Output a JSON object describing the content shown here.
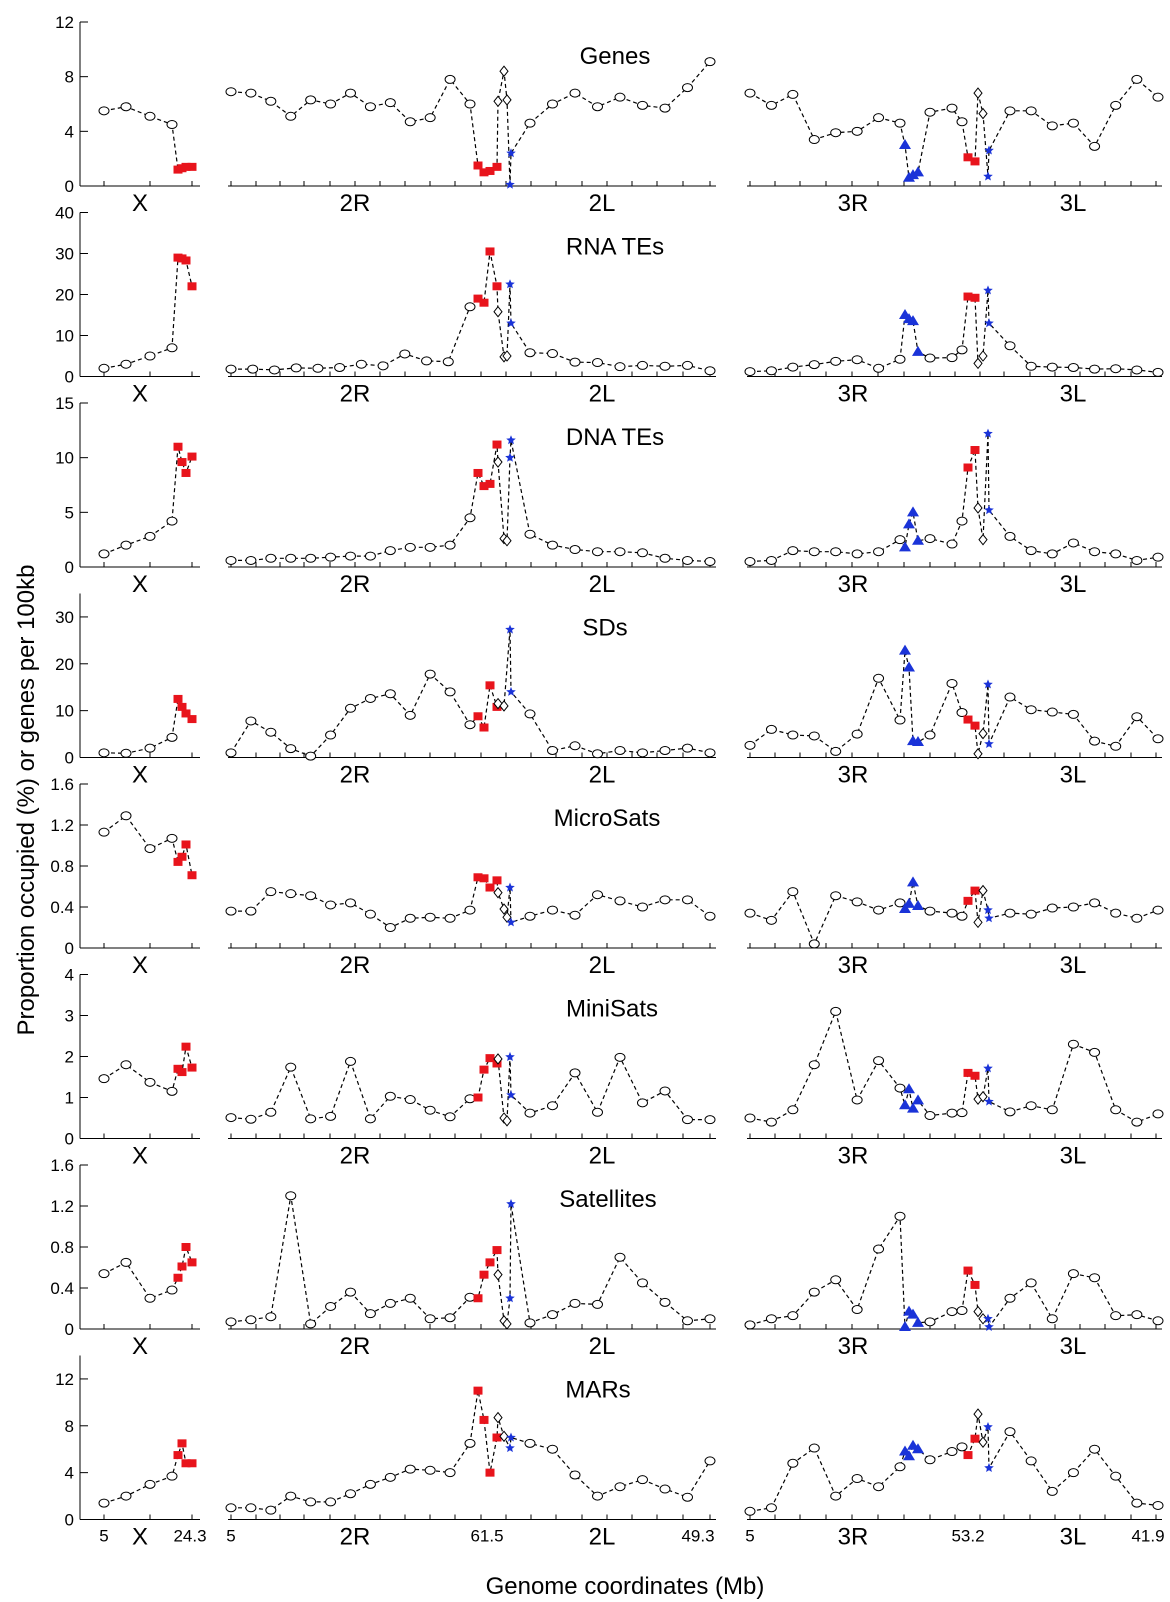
{
  "chart_data": {
    "type": "scatter",
    "ylabel": "Proportion occupied (%) or genes per 100kb",
    "xlabel": "Genome coordinates (Mb)",
    "x_tick_labels": {
      "X": [
        "5",
        "24.3"
      ],
      "2": [
        "5",
        "61.5",
        "49.3"
      ],
      "3": [
        "5",
        "53.2",
        "41.9"
      ]
    },
    "arm_labels": [
      "X",
      "2R",
      "2L",
      "3R",
      "3L"
    ],
    "panels": [
      {
        "title": "Genes",
        "yticks": [
          "0",
          "4",
          "8",
          "12"
        ],
        "ylim": [
          0,
          12
        ],
        "X": {
          "black": [
            5.5,
            5.8,
            5.1,
            4.5
          ],
          "red": [
            1.2,
            1.3,
            1.4,
            1.4
          ]
        },
        "2": {
          "black": [
            6.9,
            6.8,
            6.2,
            5.1,
            6.3,
            6.0,
            6.8,
            5.8,
            6.1,
            4.7,
            5.0,
            7.8,
            6.0
          ],
          "red": [
            1.5,
            1.0,
            1.1,
            1.4
          ],
          "diamond": [
            6.2,
            8.4,
            6.3
          ],
          "blue": [
            0.1,
            2.4
          ],
          "black2": [
            4.6,
            6.0,
            6.8,
            5.8,
            6.5,
            5.9,
            5.7,
            7.2,
            9.1
          ]
        },
        "3": {
          "black": [
            6.8,
            5.9,
            6.7,
            3.4,
            3.9,
            4.0,
            5.0,
            4.6
          ],
          "blue_tri": [
            3.0,
            0.6,
            0.8,
            1.0
          ],
          "black_mid": [
            5.4,
            5.7,
            4.7
          ],
          "red": [
            2.1,
            1.8
          ],
          "diamond": [
            6.8,
            5.3
          ],
          "blue": [
            0.7,
            2.6
          ],
          "black2": [
            5.5,
            5.5,
            4.4,
            4.6,
            2.9,
            5.9,
            7.8,
            6.5
          ]
        }
      },
      {
        "title": "RNA TEs",
        "yticks": [
          "0",
          "10",
          "20",
          "30",
          "40"
        ],
        "ylim": [
          0,
          40
        ],
        "X": {
          "black": [
            2.0,
            3.0,
            5.0,
            7.0
          ],
          "red": [
            29.0,
            28.8,
            28.3,
            22.0
          ]
        },
        "2": {
          "black": [
            1.8,
            1.8,
            1.6,
            2.1,
            2.0,
            2.2,
            3.0,
            2.6,
            5.5,
            3.8,
            3.6,
            17.0
          ],
          "red": [
            19.0,
            18.0,
            30.5,
            22.0
          ],
          "diamond": [
            15.8,
            4.8,
            5.0
          ],
          "blue": [
            22.5,
            13.0
          ],
          "black2": [
            5.8,
            5.6,
            3.5,
            3.4,
            2.4,
            2.7,
            2.5,
            2.7,
            1.4
          ]
        },
        "3": {
          "black": [
            1.2,
            1.4,
            2.3,
            2.9,
            3.7,
            4.1,
            2.0,
            4.2
          ],
          "blue_tri": [
            15.0,
            14.0,
            13.5,
            6.0
          ],
          "black_mid": [
            4.5,
            4.6,
            6.5
          ],
          "red": [
            19.5,
            19.2
          ],
          "diamond": [
            3.2,
            5.0
          ],
          "blue": [
            21.0,
            13.0
          ],
          "black2": [
            7.5,
            2.5,
            2.3,
            2.2,
            1.8,
            1.9,
            1.6,
            1.0
          ]
        }
      },
      {
        "title": "DNA TEs",
        "yticks": [
          "0",
          "5",
          "10",
          "15"
        ],
        "ylim": [
          0,
          15
        ],
        "X": {
          "black": [
            1.2,
            2.0,
            2.8,
            4.2
          ],
          "red": [
            11.0,
            9.6,
            8.6,
            10.1
          ]
        },
        "2": {
          "black": [
            0.6,
            0.6,
            0.8,
            0.8,
            0.8,
            0.9,
            1.0,
            1.0,
            1.5,
            1.8,
            1.8,
            2.0,
            4.5
          ],
          "red": [
            8.6,
            7.4,
            7.6,
            11.2
          ],
          "diamond": [
            9.6,
            2.6,
            2.4
          ],
          "blue": [
            10.0,
            11.6
          ],
          "black2": [
            3.0,
            2.0,
            1.6,
            1.4,
            1.4,
            1.3,
            0.8,
            0.6,
            0.5
          ]
        },
        "3": {
          "black": [
            0.5,
            0.6,
            1.5,
            1.4,
            1.4,
            1.2,
            1.4,
            2.5
          ],
          "blue_tri": [
            1.8,
            3.9,
            5.0,
            2.4
          ],
          "black_mid": [
            2.6,
            2.1,
            4.2
          ],
          "red": [
            9.1,
            10.7
          ],
          "diamond": [
            5.4,
            2.5
          ],
          "blue": [
            12.2,
            5.2
          ],
          "black2": [
            2.8,
            1.5,
            1.2,
            2.2,
            1.4,
            1.2,
            0.6,
            0.9
          ]
        }
      },
      {
        "title": "SDs",
        "yticks": [
          "0",
          "10",
          "20",
          "30"
        ],
        "ylim": [
          0,
          35
        ],
        "X": {
          "black": [
            1.0,
            0.9,
            2.0,
            4.3
          ],
          "red": [
            12.5,
            10.8,
            9.4,
            8.2
          ]
        },
        "2": {
          "black": [
            1.0,
            7.8,
            5.4,
            1.9,
            0.3,
            4.8,
            10.5,
            12.6,
            13.6,
            9.0,
            17.8,
            14.0,
            7.0
          ],
          "red": [
            8.8,
            6.4,
            15.4,
            10.8
          ],
          "diamond": [
            11.5,
            11.0
          ],
          "blue": [
            27.3,
            14.0
          ],
          "black2": [
            9.3,
            1.5,
            2.5,
            0.8,
            1.5,
            1.0,
            1.5,
            2.0,
            1.0
          ]
        },
        "3": {
          "black": [
            2.6,
            6.0,
            4.8,
            4.6,
            1.3,
            5.0,
            16.9,
            8.0
          ],
          "blue_tri": [
            22.8,
            19.2,
            3.5,
            3.3
          ],
          "black_mid": [
            4.8,
            15.8,
            9.6
          ],
          "red": [
            8.1,
            6.8
          ],
          "diamond": [
            0.8,
            5.1
          ],
          "blue": [
            15.6,
            2.9
          ],
          "black2": [
            12.9,
            10.2,
            9.7,
            9.2,
            3.5,
            2.4,
            8.7,
            4.0
          ]
        }
      },
      {
        "title": "MicroSats",
        "yticks": [
          "0",
          "0.4",
          "0.8",
          "1.2",
          "1.6"
        ],
        "ylim": [
          0,
          1.6
        ],
        "X": {
          "black": [
            1.13,
            1.29,
            0.97,
            1.07
          ],
          "red": [
            0.84,
            0.89,
            1.01,
            0.71
          ]
        },
        "2": {
          "black": [
            0.36,
            0.36,
            0.55,
            0.53,
            0.51,
            0.42,
            0.44,
            0.33,
            0.2,
            0.29,
            0.3,
            0.29,
            0.37
          ],
          "red": [
            0.69,
            0.68,
            0.59,
            0.66
          ],
          "diamond": [
            0.54,
            0.38,
            0.3
          ],
          "blue": [
            0.59,
            0.25
          ],
          "black2": [
            0.31,
            0.37,
            0.32,
            0.52,
            0.46,
            0.4,
            0.47,
            0.47,
            0.31
          ]
        },
        "3": {
          "black": [
            0.34,
            0.27,
            0.55,
            0.04,
            0.51,
            0.45,
            0.37,
            0.44
          ],
          "blue_tri": [
            0.38,
            0.43,
            0.64,
            0.41
          ],
          "black_mid": [
            0.36,
            0.34,
            0.31
          ],
          "red": [
            0.46,
            0.56
          ],
          "diamond": [
            0.25,
            0.56
          ],
          "blue": [
            0.37,
            0.29
          ],
          "black2": [
            0.34,
            0.33,
            0.39,
            0.4,
            0.44,
            0.34,
            0.29,
            0.37
          ]
        }
      },
      {
        "title": "MiniSats",
        "yticks": [
          "0",
          "1",
          "2",
          "3",
          "4"
        ],
        "ylim": [
          0,
          4
        ],
        "X": {
          "black": [
            1.46,
            1.8,
            1.37,
            1.15
          ],
          "red": [
            1.7,
            1.62,
            2.24,
            1.73
          ]
        },
        "2": {
          "black": [
            0.51,
            0.47,
            0.64,
            1.74,
            0.48,
            0.54,
            1.88,
            0.48,
            1.03,
            0.95,
            0.69,
            0.53,
            0.97
          ],
          "red": [
            1.0,
            1.68,
            1.96,
            1.83
          ],
          "diamond": [
            1.94,
            0.5,
            0.43
          ],
          "blue": [
            1.99,
            1.06
          ],
          "black2": [
            0.62,
            0.8,
            1.6,
            0.64,
            1.98,
            0.87,
            1.16,
            0.46,
            0.46
          ]
        },
        "3": {
          "black": [
            0.5,
            0.4,
            0.7,
            1.8,
            3.1,
            0.94,
            1.9,
            1.23
          ],
          "blue_tri": [
            0.81,
            1.2,
            0.73,
            0.93
          ],
          "black_mid": [
            0.56,
            0.62,
            0.63
          ],
          "red": [
            1.6,
            1.53
          ],
          "diamond": [
            0.96,
            1.02
          ],
          "blue": [
            1.71,
            0.9
          ],
          "black2": [
            0.65,
            0.8,
            0.7,
            2.3,
            2.1,
            0.7,
            0.4,
            0.6
          ]
        }
      },
      {
        "title": "Satellites",
        "yticks": [
          "0",
          "0.4",
          "0.8",
          "1.2",
          "1.6"
        ],
        "ylim": [
          0,
          1.6
        ],
        "X": {
          "black": [
            0.54,
            0.65,
            0.3,
            0.38
          ],
          "red": [
            0.5,
            0.61,
            0.8,
            0.65
          ]
        },
        "2": {
          "black": [
            0.07,
            0.09,
            0.12,
            1.3,
            0.05,
            0.22,
            0.36,
            0.15,
            0.25,
            0.3,
            0.1,
            0.11,
            0.31
          ],
          "red": [
            0.3,
            0.53,
            0.65,
            0.77
          ],
          "diamond": [
            0.53,
            0.08,
            0.05
          ],
          "blue": [
            0.3,
            1.22
          ],
          "black2": [
            0.06,
            0.14,
            0.25,
            0.24,
            0.7,
            0.45,
            0.26,
            0.08,
            0.1
          ]
        },
        "3": {
          "black": [
            0.04,
            0.1,
            0.13,
            0.36,
            0.48,
            0.19,
            0.78,
            1.1
          ],
          "blue_tri": [
            0.02,
            0.17,
            0.14,
            0.06
          ],
          "black_mid": [
            0.07,
            0.17,
            0.18
          ],
          "red": [
            0.57,
            0.43
          ],
          "diamond": [
            0.17,
            0.1
          ],
          "blue": [
            0.1,
            0.02
          ],
          "black2": [
            0.3,
            0.45,
            0.1,
            0.54,
            0.5,
            0.13,
            0.14,
            0.08
          ]
        }
      },
      {
        "title": "MARs",
        "yticks": [
          "0",
          "4",
          "8",
          "12"
        ],
        "ylim": [
          0,
          14
        ],
        "X": {
          "black": [
            1.4,
            2.0,
            3.0,
            3.7
          ],
          "red": [
            5.5,
            6.5,
            4.8,
            4.8
          ]
        },
        "2": {
          "black": [
            1.0,
            1.0,
            0.8,
            2.0,
            1.5,
            1.5,
            2.2,
            3.0,
            3.6,
            4.3,
            4.2,
            4.0,
            6.5
          ],
          "red": [
            11.0,
            8.5,
            4.0,
            7.0
          ],
          "diamond": [
            8.7,
            7.1
          ],
          "blue": [
            6.1,
            7.0
          ],
          "black2": [
            6.5,
            6.0,
            3.8,
            2.0,
            2.8,
            3.4,
            2.6,
            1.9,
            5.0
          ]
        },
        "3": {
          "black": [
            0.7,
            1.0,
            4.8,
            6.1,
            2.0,
            3.5,
            2.8,
            4.5
          ],
          "blue_tri": [
            5.8,
            5.4,
            6.3,
            6.0
          ],
          "black_mid": [
            5.1,
            5.8,
            6.2
          ],
          "red": [
            5.5,
            6.9
          ],
          "diamond": [
            9.0,
            6.6
          ],
          "blue": [
            7.9,
            4.4
          ],
          "black2": [
            7.5,
            5.0,
            2.4,
            4.0,
            6.0,
            3.7,
            1.4,
            1.2
          ]
        }
      }
    ]
  }
}
